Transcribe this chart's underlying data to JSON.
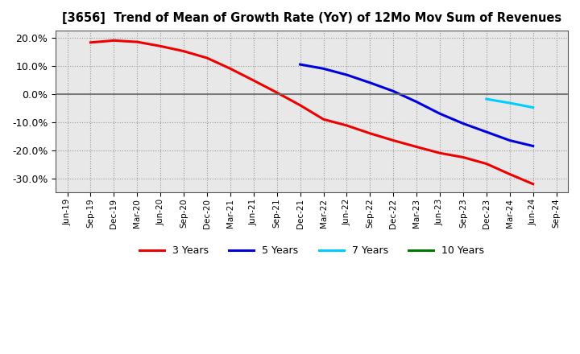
{
  "title": "[3656]  Trend of Mean of Growth Rate (YoY) of 12Mo Mov Sum of Revenues",
  "ylim": [
    -0.35,
    0.225
  ],
  "yticks": [
    -0.3,
    -0.2,
    -0.1,
    0.0,
    0.1,
    0.2
  ],
  "background_color": "#ffffff",
  "plot_bg_color": "#e8e8e8",
  "grid_color": "#999999",
  "series": {
    "3 Years": {
      "color": "#ee0000",
      "x": [
        "Sep-19",
        "Dec-19",
        "Mar-20",
        "Jun-20",
        "Sep-20",
        "Dec-20",
        "Mar-21",
        "Jun-21",
        "Sep-21",
        "Dec-21",
        "Mar-22",
        "Jun-22",
        "Sep-22",
        "Dec-22",
        "Mar-23",
        "Jun-23",
        "Sep-23",
        "Dec-23",
        "Mar-24",
        "Jun-24"
      ],
      "y": [
        0.183,
        0.19,
        0.185,
        0.17,
        0.152,
        0.128,
        0.09,
        0.048,
        0.005,
        -0.04,
        -0.09,
        -0.112,
        -0.14,
        -0.165,
        -0.188,
        -0.21,
        -0.225,
        -0.248,
        -0.285,
        -0.32
      ]
    },
    "5 Years": {
      "color": "#0000dd",
      "x": [
        "Dec-21",
        "Mar-22",
        "Jun-22",
        "Sep-22",
        "Dec-22",
        "Mar-23",
        "Jun-23",
        "Sep-23",
        "Dec-23",
        "Mar-24",
        "Jun-24"
      ],
      "y": [
        0.105,
        0.09,
        0.068,
        0.04,
        0.01,
        -0.028,
        -0.07,
        -0.105,
        -0.135,
        -0.165,
        -0.185
      ]
    },
    "7 Years": {
      "color": "#00ccff",
      "x": [
        "Dec-23",
        "Mar-24",
        "Jun-24"
      ],
      "y": [
        -0.018,
        -0.032,
        -0.048
      ]
    },
    "10 Years": {
      "color": "#007700",
      "x": [],
      "y": []
    }
  },
  "x_tick_labels": [
    "Jun-19",
    "Sep-19",
    "Dec-19",
    "Mar-20",
    "Jun-20",
    "Sep-20",
    "Dec-20",
    "Mar-21",
    "Jun-21",
    "Sep-21",
    "Dec-21",
    "Mar-22",
    "Jun-22",
    "Sep-22",
    "Dec-22",
    "Mar-23",
    "Jun-23",
    "Sep-23",
    "Dec-23",
    "Mar-24",
    "Jun-24",
    "Sep-24"
  ],
  "legend_order": [
    "3 Years",
    "5 Years",
    "7 Years",
    "10 Years"
  ]
}
